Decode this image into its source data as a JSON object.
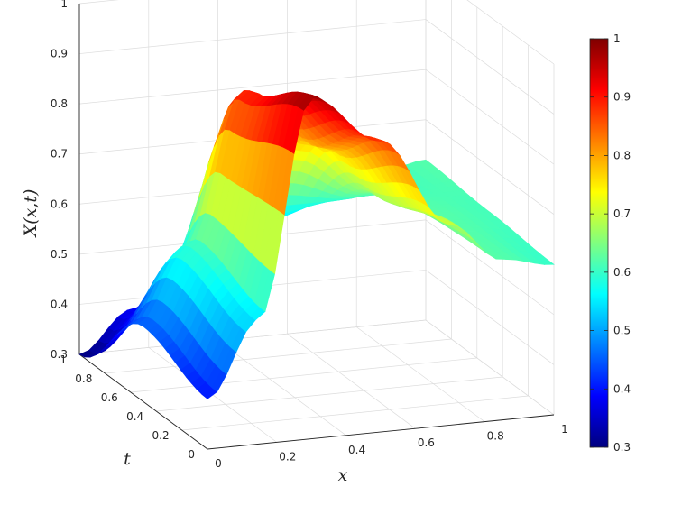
{
  "chart_data": {
    "type": "surface",
    "title": "",
    "xlabel": "x",
    "ylabel": "t",
    "zlabel": "X(x,t)",
    "xlim": [
      0,
      1
    ],
    "ylim": [
      0,
      1
    ],
    "zlim": [
      0.3,
      1
    ],
    "x_ticks": [
      "0",
      "0.2",
      "0.4",
      "0.6",
      "0.8",
      "1"
    ],
    "y_ticks": [
      "0",
      "0.2",
      "0.4",
      "0.6",
      "0.8",
      "1"
    ],
    "z_ticks": [
      "0.3",
      "0.4",
      "0.5",
      "0.6",
      "0.7",
      "0.8",
      "0.9",
      "1"
    ],
    "colorbar": {
      "colormap": "jet",
      "range": [
        0.3,
        1
      ],
      "ticks": [
        "0.3",
        "0.4",
        "0.5",
        "0.6",
        "0.7",
        "0.8",
        "0.9",
        "1"
      ]
    },
    "grid": true,
    "series": [
      {
        "t": 1.0,
        "x": [
          0,
          0.15,
          0.3,
          0.5,
          0.7,
          0.85,
          1.0
        ],
        "z": [
          0.3,
          0.38,
          0.46,
          0.53,
          0.57,
          0.6,
          0.62
        ]
      },
      {
        "t": 0.5,
        "x": [
          0,
          0.15,
          0.3,
          0.5,
          0.7,
          0.85,
          1.0
        ],
        "z": [
          0.45,
          0.6,
          0.9,
          0.78,
          0.66,
          0.62,
          0.61
        ]
      },
      {
        "t": 0.0,
        "x": [
          0,
          0.15,
          0.3,
          0.5,
          0.7,
          0.85,
          1.0
        ],
        "z": [
          0.4,
          0.55,
          0.98,
          0.88,
          0.7,
          0.62,
          0.6
        ]
      }
    ]
  }
}
